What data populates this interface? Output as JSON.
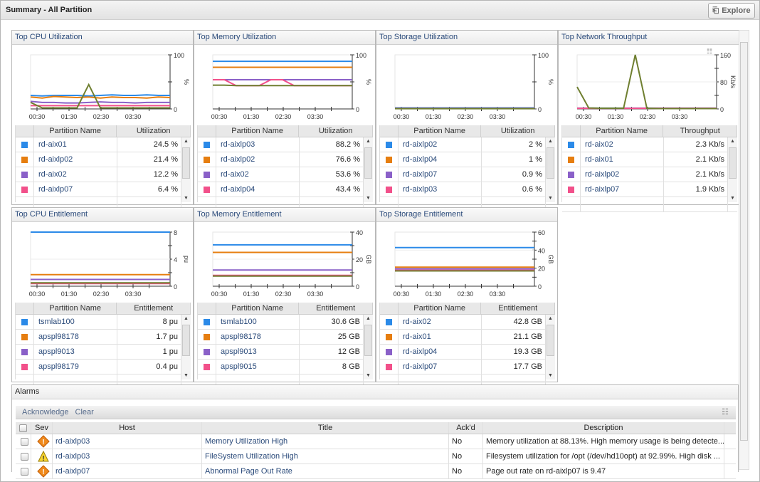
{
  "page": {
    "title": "Summary - All Partition",
    "explore_label": "Explore"
  },
  "colors": [
    "#2b8ae8",
    "#e67e10",
    "#8a60c8",
    "#f2508a",
    "#6f7f30"
  ],
  "time_ticks": [
    "00:30",
    "01:30",
    "02:30",
    "03:30"
  ],
  "panels": [
    {
      "title": "Top CPU Utilization",
      "unit": "%",
      "value_header": "Utilization",
      "name_header": "Partition Name",
      "ymax": 100,
      "yticks": [
        "100",
        "0"
      ],
      "series": [
        [
          25,
          24,
          25,
          25,
          25,
          24,
          25,
          26,
          25,
          25,
          26,
          25,
          25
        ],
        [
          22,
          20,
          23,
          22,
          21,
          22,
          20,
          22,
          21,
          21,
          20,
          22,
          21
        ],
        [
          14,
          12,
          12,
          11,
          11,
          12,
          13,
          12,
          12,
          11,
          12,
          12,
          12
        ],
        [
          6,
          6,
          6,
          6,
          6,
          6,
          6,
          6,
          6,
          6,
          6,
          6,
          6
        ],
        [
          12,
          2,
          2,
          2,
          2,
          45,
          2,
          2,
          2,
          2,
          2,
          2,
          2
        ]
      ],
      "rows": [
        {
          "name": "rd-aix01",
          "value": "24.5 %"
        },
        {
          "name": "rd-aixlp02",
          "value": "21.4 %"
        },
        {
          "name": "rd-aix02",
          "value": "12.2 %"
        },
        {
          "name": "rd-aixlp07",
          "value": "6.4 %"
        }
      ]
    },
    {
      "title": "Top Memory Utilization",
      "unit": "%",
      "value_header": "Utilization",
      "name_header": "Partition Name",
      "ymax": 100,
      "yticks": [
        "100",
        "0"
      ],
      "series": [
        [
          88,
          88,
          88,
          88,
          88,
          88,
          88,
          88,
          88,
          88,
          88,
          88,
          88
        ],
        [
          77,
          77,
          77,
          77,
          77,
          77,
          77,
          77,
          77,
          77,
          77,
          77,
          77
        ],
        [
          54,
          54,
          54,
          54,
          54,
          54,
          54,
          54,
          54,
          54,
          54,
          54,
          54
        ],
        [
          54,
          54,
          43,
          43,
          43,
          54,
          54,
          43,
          43,
          43,
          43,
          43,
          43
        ],
        [
          44,
          44,
          43,
          43,
          43,
          43,
          43,
          43,
          43,
          43,
          43,
          43,
          43
        ]
      ],
      "rows": [
        {
          "name": "rd-aixlp03",
          "value": "88.2 %"
        },
        {
          "name": "rd-aixlp02",
          "value": "76.6 %"
        },
        {
          "name": "rd-aix02",
          "value": "53.6 %"
        },
        {
          "name": "rd-aixlp04",
          "value": "43.4 %"
        }
      ]
    },
    {
      "title": "Top Storage Utilization",
      "unit": "%",
      "value_header": "Utilization",
      "name_header": "Partition Name",
      "ymax": 100,
      "yticks": [
        "100",
        "0"
      ],
      "series": [
        [
          2,
          2,
          2,
          2,
          2,
          2,
          2,
          2,
          2,
          2,
          2,
          2,
          2
        ],
        [
          1,
          1,
          1,
          1,
          1,
          1,
          1,
          1,
          1,
          1,
          1,
          1,
          1
        ],
        [
          1,
          1,
          1,
          1,
          1,
          1,
          1,
          1,
          1,
          1,
          1,
          1,
          1
        ],
        [
          0.6,
          0.6,
          0.6,
          0.6,
          0.6,
          0.6,
          0.6,
          0.6,
          0.6,
          0.6,
          0.6,
          0.6,
          0.6
        ],
        [
          0.5,
          0.5,
          0.5,
          0.5,
          0.5,
          0.5,
          0.5,
          0.5,
          0.5,
          0.5,
          0.5,
          0.5,
          0.5
        ]
      ],
      "rows": [
        {
          "name": "rd-aixlp02",
          "value": "2 %"
        },
        {
          "name": "rd-aixlp04",
          "value": "1 %"
        },
        {
          "name": "rd-aixlp07",
          "value": "0.9 %"
        },
        {
          "name": "rd-aixlp03",
          "value": "0.6 %"
        }
      ]
    },
    {
      "title": "Top Network Throughput",
      "unit": "Kb/s",
      "value_header": "Throughput",
      "name_header": "Partition Name",
      "ymax": 160,
      "yticks": [
        "160",
        "80",
        "0"
      ],
      "has_menu": true,
      "series": [
        [
          2.3,
          2.3,
          2.3,
          2.3,
          2.3,
          2.3,
          2.3,
          2.3,
          2.3,
          2.3,
          2.3,
          2.3,
          2.3
        ],
        [
          2.1,
          2.1,
          2.1,
          2.1,
          2.1,
          2.1,
          2.1,
          2.1,
          2.1,
          2.1,
          2.1,
          2.1,
          2.1
        ],
        [
          2.1,
          2.1,
          2.1,
          2.1,
          2.1,
          2.1,
          2.1,
          2.1,
          2.1,
          2.1,
          2.1,
          2.1,
          2.1
        ],
        [
          1.9,
          1.9,
          1.9,
          1.9,
          1.9,
          1.9,
          1.9,
          1.9,
          1.9,
          1.9,
          1.9,
          1.9,
          1.9
        ],
        [
          65,
          3,
          2,
          2,
          2,
          160,
          2,
          1,
          1,
          1,
          1,
          1,
          1
        ]
      ],
      "rows": [
        {
          "name": "rd-aix02",
          "value": "2.3 Kb/s"
        },
        {
          "name": "rd-aix01",
          "value": "2.1 Kb/s"
        },
        {
          "name": "rd-aixlp02",
          "value": "2.1 Kb/s"
        },
        {
          "name": "rd-aixlp07",
          "value": "1.9 Kb/s"
        }
      ]
    },
    {
      "title": "Top CPU Entitlement",
      "unit": "pu",
      "value_header": "Entitlement",
      "name_header": "Partition Name",
      "ymax": 8,
      "yticks": [
        "8",
        "4",
        "0"
      ],
      "series": [
        [
          8,
          8,
          8,
          8,
          8,
          8,
          8,
          8,
          8,
          8,
          8,
          8,
          8
        ],
        [
          1.7,
          1.7,
          1.7,
          1.7,
          1.7,
          1.7,
          1.7,
          1.7,
          1.7,
          1.7,
          1.7,
          1.7,
          1.7
        ],
        [
          1,
          1,
          1,
          1,
          1,
          1,
          1,
          1,
          1,
          1,
          1,
          1,
          1
        ],
        [
          0.4,
          0.4,
          0.4,
          0.4,
          0.4,
          0.4,
          0.4,
          0.4,
          0.4,
          0.4,
          0.4,
          0.4,
          0.4
        ],
        [
          0.5,
          0.5,
          0.5,
          0.5,
          0.5,
          0.5,
          0.5,
          0.5,
          0.5,
          0.5,
          0.5,
          0.5,
          0.5
        ]
      ],
      "rows": [
        {
          "name": "tsmlab100",
          "value": "8 pu"
        },
        {
          "name": "apspl98178",
          "value": "1.7 pu"
        },
        {
          "name": "apspl9013",
          "value": "1 pu"
        },
        {
          "name": "apspl98179",
          "value": "0.4 pu"
        }
      ]
    },
    {
      "title": "Top Memory Entitlement",
      "unit": "GB",
      "value_header": "Entitlement",
      "name_header": "Partition Name",
      "ymax": 40,
      "yticks": [
        "40",
        "20",
        "0"
      ],
      "series": [
        [
          30.6,
          30.6,
          30.6,
          30.6,
          30.6,
          30.6,
          30.6,
          30.6,
          30.6,
          30.6,
          30.6,
          30.6,
          30.6
        ],
        [
          25,
          25,
          25,
          25,
          25,
          25,
          25,
          25,
          25,
          25,
          25,
          25,
          25
        ],
        [
          12,
          12,
          12,
          12,
          12,
          12,
          12,
          12,
          12,
          12,
          12,
          12,
          12
        ],
        [
          8,
          8,
          8,
          8,
          8,
          8,
          8,
          8,
          8,
          8,
          8,
          8,
          8
        ],
        [
          7.5,
          7.5,
          7.5,
          7.5,
          7.5,
          7.5,
          7.5,
          7.5,
          7.5,
          7.5,
          7.5,
          7.5,
          7.5
        ]
      ],
      "rows": [
        {
          "name": "tsmlab100",
          "value": "30.6 GB"
        },
        {
          "name": "apspl98178",
          "value": "25 GB"
        },
        {
          "name": "apspl9013",
          "value": "12 GB"
        },
        {
          "name": "apspl9015",
          "value": "8 GB"
        }
      ]
    },
    {
      "title": "Top Storage Entitlement",
      "unit": "GB",
      "value_header": "Entitlement",
      "name_header": "Partition Name",
      "ymax": 60,
      "yticks": [
        "60",
        "40",
        "20",
        "0"
      ],
      "series": [
        [
          42.8,
          42.8,
          42.8,
          42.8,
          42.8,
          42.8,
          42.8,
          42.8,
          42.8,
          42.8,
          42.8,
          42.8,
          42.8
        ],
        [
          21.1,
          21.1,
          21.1,
          21.1,
          21.1,
          21.1,
          21.1,
          21.1,
          21.1,
          21.1,
          21.1,
          21.1,
          21.1
        ],
        [
          19.3,
          19.3,
          19.3,
          19.3,
          19.3,
          19.3,
          19.3,
          19.3,
          19.3,
          19.3,
          19.3,
          19.3,
          19.3
        ],
        [
          17.7,
          17.7,
          17.7,
          17.7,
          17.7,
          17.7,
          17.7,
          17.7,
          17.7,
          17.7,
          17.7,
          17.7,
          17.7
        ],
        [
          17,
          17,
          17,
          17,
          17,
          17,
          17,
          17,
          17,
          17,
          17,
          17,
          17
        ]
      ],
      "rows": [
        {
          "name": "rd-aix02",
          "value": "42.8 GB"
        },
        {
          "name": "rd-aix01",
          "value": "21.1 GB"
        },
        {
          "name": "rd-aixlp04",
          "value": "19.3 GB"
        },
        {
          "name": "rd-aixlp07",
          "value": "17.7 GB"
        }
      ]
    }
  ],
  "alarms": {
    "title": "Alarms",
    "acknowledge_label": "Acknowledge",
    "clear_label": "Clear",
    "columns": [
      "Sev",
      "Host",
      "Title",
      "Ack'd",
      "Description"
    ],
    "rows": [
      {
        "severity": "critical",
        "host": "rd-aixlp03",
        "title": "Memory Utilization High",
        "acked": "No",
        "description": "Memory utilization at 88.13%. High memory usage is being detecte..."
      },
      {
        "severity": "warning",
        "host": "rd-aixlp03",
        "title": "FileSystem Utilization High",
        "acked": "No",
        "description": "Filesystem utilization for /opt (/dev/hd10opt) at 92.99%. High disk ..."
      },
      {
        "severity": "critical",
        "host": "rd-aixlp07",
        "title": "Abnormal Page Out Rate",
        "acked": "No",
        "description": "Page out rate on rd-aixlp07 is 9.47"
      }
    ]
  }
}
